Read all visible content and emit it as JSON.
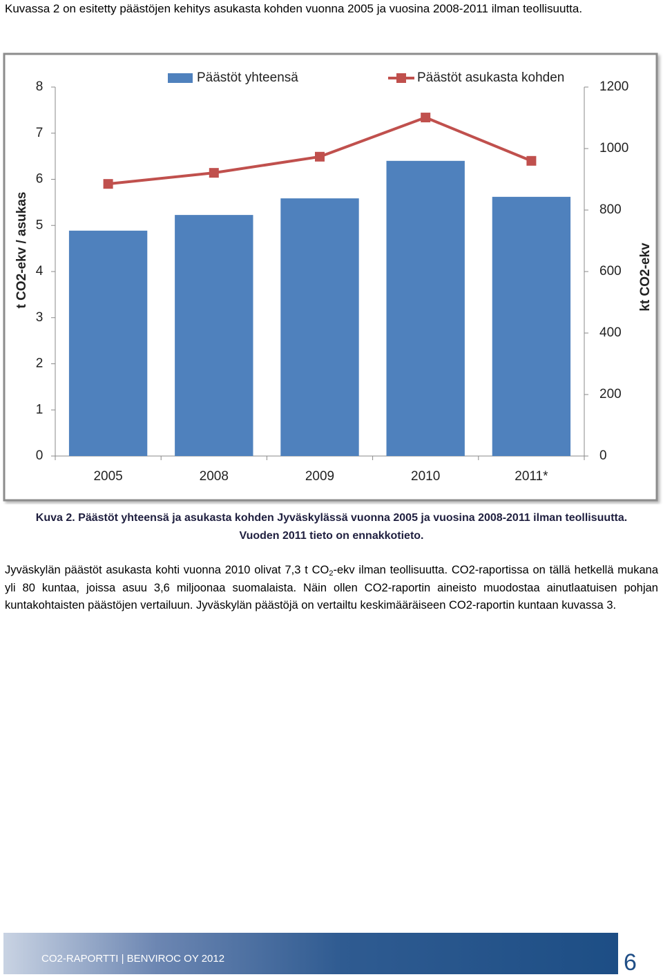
{
  "intro": "Kuvassa 2 on esitetty päästöjen kehitys asukasta kohden vuonna 2005 ja vuosina 2008-2011 ilman teollisuutta.",
  "chart_data": {
    "type": "bar",
    "categories": [
      "2005",
      "2008",
      "2009",
      "2010",
      "2011*"
    ],
    "series": [
      {
        "name": "Päästöt yhteensä",
        "type": "bar",
        "axis": "y2",
        "color": "#4f81bd",
        "values": [
          733,
          784,
          838,
          960,
          843
        ]
      },
      {
        "name": "Päästöt asukasta kohden",
        "type": "line",
        "color": "#c0504d",
        "values": [
          5.9,
          6.14,
          6.49,
          7.34,
          6.4
        ]
      }
    ],
    "ylabel": "t CO2-ekv / asukas",
    "y2label": "kt CO2-ekv",
    "ylim": [
      0,
      8
    ],
    "yticks": [
      0,
      1,
      2,
      3,
      4,
      5,
      6,
      7,
      8
    ],
    "y2lim": [
      0,
      1200
    ],
    "y2ticks": [
      0,
      200,
      400,
      600,
      800,
      1000,
      1200
    ],
    "legend": "top",
    "grid": false
  },
  "caption": "Kuva 2. Päästöt yhteensä ja asukasta kohden Jyväskylässä vuonna 2005 ja vuosina 2008-2011 ilman teollisuutta. Vuoden 2011 tieto on ennakkotieto.",
  "body": [
    "Jyväskylän päästöt asukasta kohti vuonna 2010 olivat 7,3 t CO",
    "2",
    "-ekv ilman teollisuutta. CO2-raportissa on tällä hetkellä mukana yli 80 kuntaa, joissa asuu 3,6 miljoonaa suomalaista. Näin ollen CO2-raportin aineisto muodostaa ainutlaatuisen pohjan kuntakohtaisten päästöjen vertailuun. Jyväskylän päästöjä on vertailtu keskimääräiseen CO2-raportin kuntaan kuvassa 3."
  ],
  "footer": {
    "text": "CO2-RAPORTTI | BENVIROC OY 2012",
    "page": "6"
  }
}
